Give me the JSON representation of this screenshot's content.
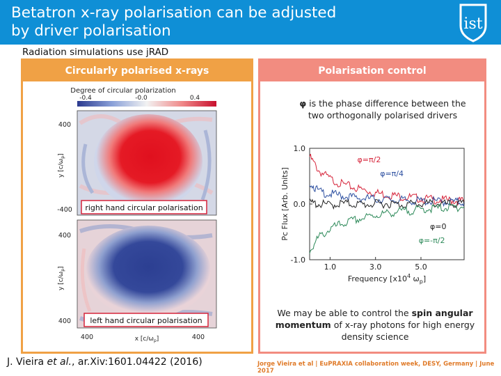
{
  "header": {
    "title_line1": "Betatron x-ray polarisation can be adjusted",
    "title_line2": "by driver polarisation",
    "bg_color": "#0f8fd6"
  },
  "logo": {
    "text": "ist",
    "icon": "ist-shield-logo"
  },
  "subtitle": "Radiation simulations use jRAD",
  "left_panel": {
    "heading": "Circularly polarised x-rays",
    "colorbar_title": "Degree of circular polarization",
    "colorbar_ticks": [
      "-0.4",
      "-0.0",
      "0.4"
    ],
    "top_map": {
      "label": "right hand circular polarisation",
      "ylabel": "y [c/ω",
      "ylabel_sub": "p",
      "ylabel_end": "]",
      "yticks": [
        "400",
        "-400"
      ]
    },
    "bottom_map": {
      "label": "left hand circular polarisation",
      "ylabel": "y [c/ω",
      "ylabel_sub": "p",
      "ylabel_end": "]",
      "yticks": [
        "400",
        "400"
      ],
      "xticks": [
        "400",
        "400"
      ],
      "xlabel": "x [c/ω",
      "xlabel_sub": "p",
      "xlabel_end": "]"
    },
    "border_color": "#f0a145"
  },
  "right_panel": {
    "heading": "Polarisation control",
    "desc_prefix": "φ",
    "desc_line1": " is the phase difference between the",
    "desc_line2": "two orthogonally polarised drivers",
    "note_pre": "We may be able to control the ",
    "note_bold1": "spin angular",
    "note_bold2": "momentum",
    "note_post": " of x-ray photons for high energy",
    "note_line3": "density science",
    "border_color": "#f28c80"
  },
  "chart_data": {
    "type": "line",
    "xlabel": "Frequency [x10",
    "xlabel_sup": "4",
    "xlabel_end": " ω",
    "xlabel_sub": "p",
    "xlabel_close": "]",
    "ylabel": "Pc Flux [Arb. Units]",
    "xlim": [
      0.1,
      6.9
    ],
    "ylim": [
      -1.0,
      1.0
    ],
    "xticks": [
      {
        "v": 1.0,
        "t": "1.0"
      },
      {
        "v": 3.0,
        "t": "3.0"
      },
      {
        "v": 5.0,
        "t": "5.0"
      }
    ],
    "yticks": [
      {
        "v": 1.0,
        "t": "1.0"
      },
      {
        "v": 0.0,
        "t": "0.0"
      },
      {
        "v": -1.0,
        "t": "-1.0"
      }
    ],
    "series": [
      {
        "name": "φ=π/2",
        "color": "#d6243a",
        "x": [
          0.1,
          0.5,
          1.0,
          1.5,
          2.0,
          2.5,
          3.0,
          3.5,
          4.0,
          4.5,
          5.0,
          5.5,
          6.0,
          6.5,
          6.9
        ],
        "y": [
          0.85,
          0.6,
          0.45,
          0.36,
          0.3,
          0.25,
          0.2,
          0.17,
          0.14,
          0.12,
          0.1,
          0.08,
          0.07,
          0.06,
          0.05
        ]
      },
      {
        "name": "φ=π/4",
        "color": "#2c4fa0",
        "x": [
          0.1,
          0.5,
          1.0,
          1.5,
          2.0,
          2.5,
          3.0,
          3.5,
          4.0,
          4.5,
          5.0,
          5.5,
          6.0,
          6.5,
          6.9
        ],
        "y": [
          0.4,
          0.22,
          0.18,
          0.15,
          0.12,
          0.1,
          0.09,
          0.08,
          0.07,
          0.06,
          0.05,
          0.05,
          0.04,
          0.04,
          0.03
        ]
      },
      {
        "name": "φ=0",
        "color": "#222222",
        "x": [
          0.1,
          0.5,
          1.0,
          1.5,
          2.0,
          2.5,
          3.0,
          3.5,
          4.0,
          4.5,
          5.0,
          5.5,
          6.0,
          6.5,
          6.9
        ],
        "y": [
          0.02,
          0.0,
          -0.02,
          0.01,
          0.0,
          -0.01,
          0.0,
          0.01,
          -0.01,
          0.0,
          0.0,
          0.01,
          0.0,
          -0.01,
          0.0
        ]
      },
      {
        "name": "φ=-π/2",
        "color": "#2e8a5a",
        "x": [
          0.1,
          0.5,
          1.0,
          1.5,
          2.0,
          2.5,
          3.0,
          3.5,
          4.0,
          4.5,
          5.0,
          5.5,
          6.0,
          6.5,
          6.9
        ],
        "y": [
          -0.85,
          -0.6,
          -0.45,
          -0.36,
          -0.3,
          -0.25,
          -0.2,
          -0.17,
          -0.14,
          -0.12,
          -0.1,
          -0.08,
          -0.07,
          -0.06,
          -0.05
        ]
      }
    ],
    "grid": false
  },
  "citation_pre": "J. Vieira ",
  "citation_em": "et al.",
  "citation_post": ", ar.Xiv:1601.04422 (2016)",
  "footer": "Jorge Vieira et al | EuPRAXIA collaboration week, DESY, Germany | June 2017"
}
